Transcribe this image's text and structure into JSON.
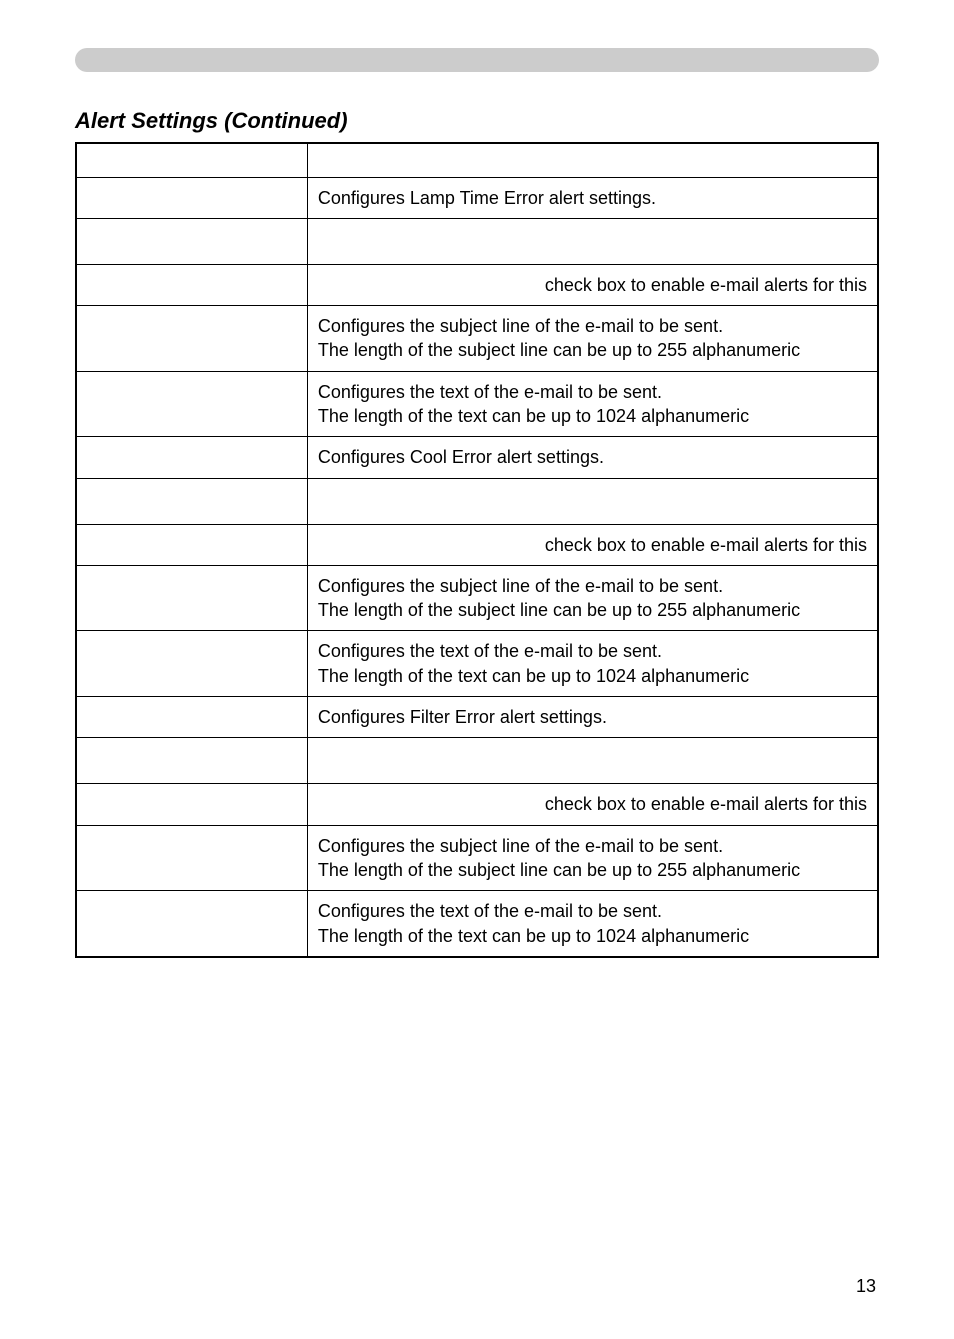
{
  "header": {
    "bar_color": "#cccccc"
  },
  "section_title": "Alert Settings (Continued)",
  "table": {
    "border_color": "#000000",
    "rows": [
      {
        "type": "header-empty"
      },
      {
        "type": "section",
        "desc": "Configures Lamp Time Error alert settings."
      },
      {
        "type": "spacer"
      },
      {
        "type": "checkbox",
        "desc": "check box to enable e-mail alerts for this"
      },
      {
        "type": "subject",
        "desc1": "Configures the subject line of the e-mail to be sent.",
        "desc2": "The length of the subject line can be up to 255 alphanumeric"
      },
      {
        "type": "text",
        "desc1": "Configures the text of the e-mail to be sent.",
        "desc2": "The length of the text can be up to 1024 alphanumeric"
      },
      {
        "type": "section",
        "desc": "Configures Cool Error alert settings."
      },
      {
        "type": "spacer"
      },
      {
        "type": "checkbox",
        "desc": "check box to enable e-mail alerts for this"
      },
      {
        "type": "subject",
        "desc1": "Configures the subject line of the e-mail to be sent.",
        "desc2": "The length of the subject line can be up to 255 alphanumeric"
      },
      {
        "type": "text",
        "desc1": "Configures the text of the e-mail to be sent.",
        "desc2": "The length of the text can be up to 1024 alphanumeric"
      },
      {
        "type": "section",
        "desc": "Configures Filter Error alert settings."
      },
      {
        "type": "spacer"
      },
      {
        "type": "checkbox",
        "desc": "check box to enable e-mail alerts for this"
      },
      {
        "type": "subject",
        "desc1": "Configures the subject line of the e-mail to be sent.",
        "desc2": "The length of the subject line can be up to 255 alphanumeric"
      },
      {
        "type": "text",
        "desc1": "Configures the text of the e-mail to be sent.",
        "desc2": "The length of the text can be up to 1024 alphanumeric"
      }
    ]
  },
  "page_number": "13",
  "typography": {
    "title_fontsize": 22,
    "body_fontsize": 18,
    "page_number_fontsize": 18,
    "font_family": "Arial, Helvetica, sans-serif"
  },
  "colors": {
    "background": "#ffffff",
    "text": "#000000",
    "header_bar": "#cccccc",
    "border": "#000000"
  }
}
